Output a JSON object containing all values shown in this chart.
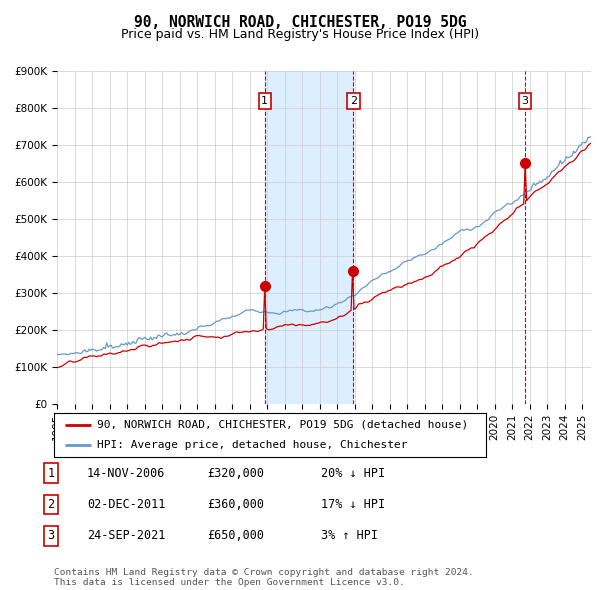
{
  "title": "90, NORWICH ROAD, CHICHESTER, PO19 5DG",
  "subtitle": "Price paid vs. HM Land Registry's House Price Index (HPI)",
  "ylim": [
    0,
    900000
  ],
  "yticks": [
    0,
    100000,
    200000,
    300000,
    400000,
    500000,
    600000,
    700000,
    800000,
    900000
  ],
  "ytick_labels": [
    "£0",
    "£100K",
    "£200K",
    "£300K",
    "£400K",
    "£500K",
    "£600K",
    "£700K",
    "£800K",
    "£900K"
  ],
  "xlim_start": 1995.0,
  "xlim_end": 2025.5,
  "xtick_years": [
    1995,
    1996,
    1997,
    1998,
    1999,
    2000,
    2001,
    2002,
    2003,
    2004,
    2005,
    2006,
    2007,
    2008,
    2009,
    2010,
    2011,
    2012,
    2013,
    2014,
    2015,
    2016,
    2017,
    2018,
    2019,
    2020,
    2021,
    2022,
    2023,
    2024,
    2025
  ],
  "hpi_color": "#6699cc",
  "price_color": "#cc0000",
  "sale_dot_color": "#cc0000",
  "vline_color": "#cc0000",
  "shade_color": "#ddeeff",
  "background_color": "#ffffff",
  "grid_color": "#cccccc",
  "legend_label_price": "90, NORWICH ROAD, CHICHESTER, PO19 5DG (detached house)",
  "legend_label_hpi": "HPI: Average price, detached house, Chichester",
  "sales": [
    {
      "date_year": 2006.87,
      "price": 320000,
      "label": "1",
      "note": "14-NOV-2006",
      "amount": "£320,000",
      "hpi_rel": "20% ↓ HPI"
    },
    {
      "date_year": 2011.92,
      "price": 360000,
      "label": "2",
      "note": "02-DEC-2011",
      "amount": "£360,000",
      "hpi_rel": "17% ↓ HPI"
    },
    {
      "date_year": 2021.73,
      "price": 650000,
      "label": "3",
      "note": "24-SEP-2021",
      "amount": "£650,000",
      "hpi_rel": "3% ↑ HPI"
    }
  ],
  "footnote": "Contains HM Land Registry data © Crown copyright and database right 2024.\nThis data is licensed under the Open Government Licence v3.0.",
  "title_fontsize": 10.5,
  "subtitle_fontsize": 9,
  "tick_fontsize": 7.5,
  "legend_fontsize": 8,
  "table_fontsize": 8.5
}
